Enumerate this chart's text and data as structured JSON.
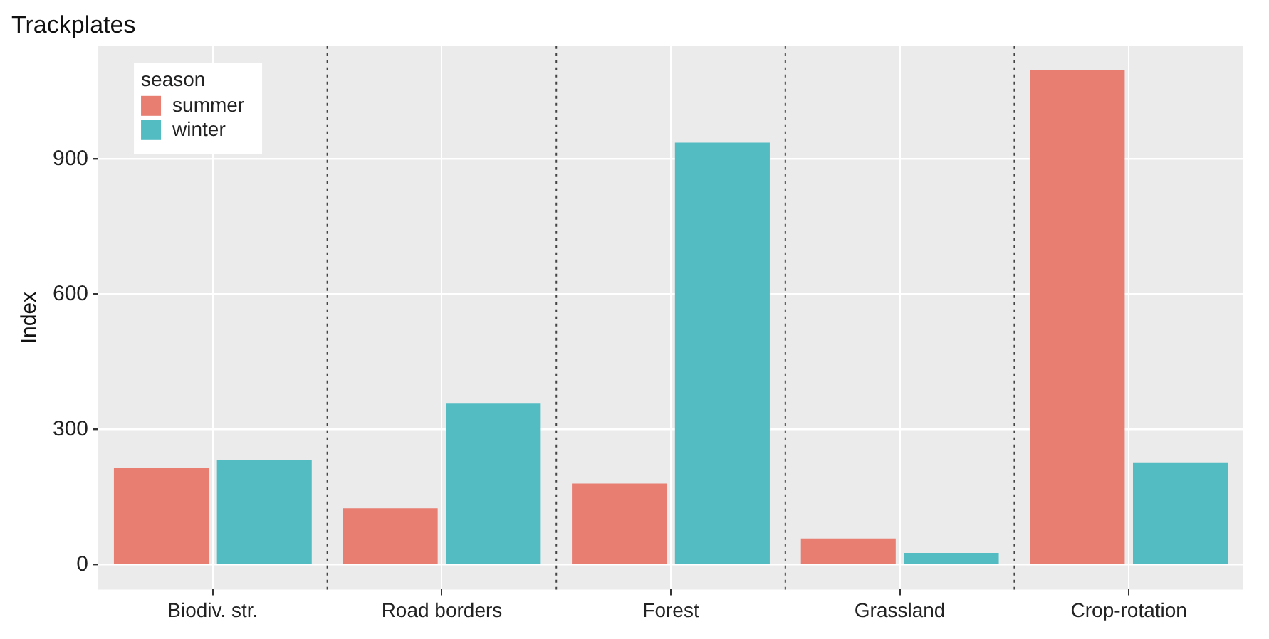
{
  "chart_data": {
    "type": "bar",
    "title": "Trackplates",
    "ylabel": "Index",
    "legend_title": "season",
    "categories": [
      "Biodiv. str.",
      "Road borders",
      "Forest",
      "Grassland",
      "Crop-rotation"
    ],
    "series": [
      {
        "name": "summer",
        "color": "#e87d72",
        "values": [
          214,
          125,
          180,
          58,
          1097
        ]
      },
      {
        "name": "winter",
        "color": "#53bcc3",
        "values": [
          233,
          357,
          936,
          26,
          227
        ]
      }
    ],
    "ylim": [
      -55,
      1150
    ],
    "yticks": [
      0,
      300,
      600,
      900
    ],
    "grid": true,
    "legend": "top left"
  }
}
